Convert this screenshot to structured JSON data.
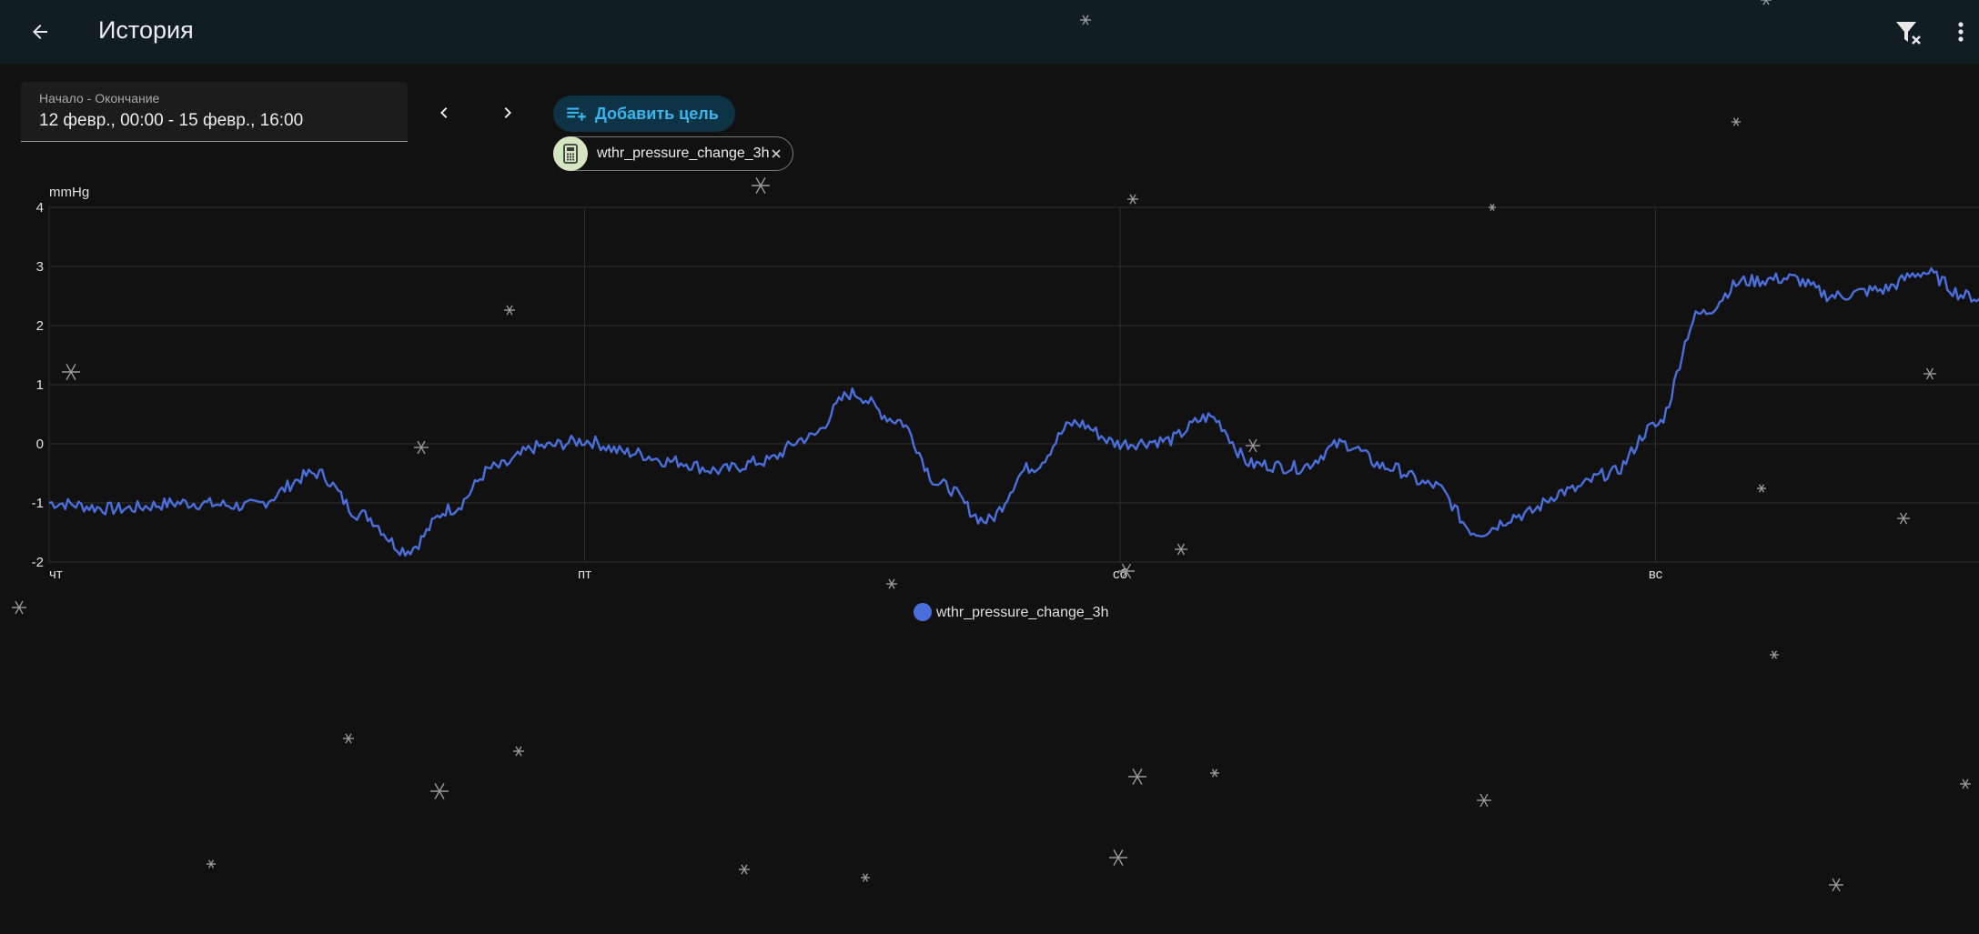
{
  "header": {
    "title": "История",
    "back_icon": "arrow-left-icon",
    "filter_icon": "filter-remove-icon",
    "menu_icon": "dots-vertical-icon"
  },
  "date_range": {
    "label": "Начало - Окончание",
    "value": "12 февр., 00:00 - 15 февр., 16:00"
  },
  "add_target": {
    "label": "Добавить цель",
    "icon": "playlist-plus-icon"
  },
  "target_chip": {
    "label": "wthr_pressure_change_3h",
    "icon": "calculator-icon"
  },
  "colors": {
    "series": "#4a6fdc",
    "accent": "#38b6f0",
    "header_bg": "#101e24"
  },
  "chart_data": {
    "type": "line",
    "ylabel": "mmHg",
    "ylim": [
      -2,
      4
    ],
    "yticks": [
      "4",
      "3",
      "2",
      "1",
      "0",
      "-1",
      "-2"
    ],
    "x_tick_labels": [
      "чт",
      "пт",
      "сб",
      "вс"
    ],
    "grid": true,
    "legend": "bottom-center",
    "series": [
      {
        "name": "wthr_pressure_change_3h",
        "color": "#4a6fdc",
        "x_hours": [
          0,
          3,
          6,
          9,
          12,
          14,
          16,
          18,
          20,
          22,
          24,
          26,
          28,
          30,
          32,
          34,
          36,
          38,
          40,
          42,
          44,
          46,
          48,
          50,
          52,
          54,
          56,
          58,
          60,
          62,
          64,
          66,
          68,
          70,
          72,
          74,
          76,
          78,
          80,
          82,
          84,
          86,
          88
        ],
        "values": [
          -1.0,
          -1.1,
          -1.0,
          -1.05,
          -0.5,
          -1.2,
          -1.8,
          -1.1,
          -0.4,
          -0.05,
          0.05,
          -0.15,
          -0.3,
          -0.45,
          -0.3,
          0.1,
          0.85,
          0.4,
          -0.7,
          -1.3,
          -0.4,
          0.35,
          0.0,
          0.05,
          0.45,
          -0.35,
          -0.4,
          0.0,
          -0.4,
          -0.7,
          -1.5,
          -1.2,
          -0.8,
          -0.5,
          0.3,
          2.2,
          2.75,
          2.8,
          2.5,
          2.6,
          2.9,
          2.5,
          2.05
        ]
      }
    ]
  }
}
